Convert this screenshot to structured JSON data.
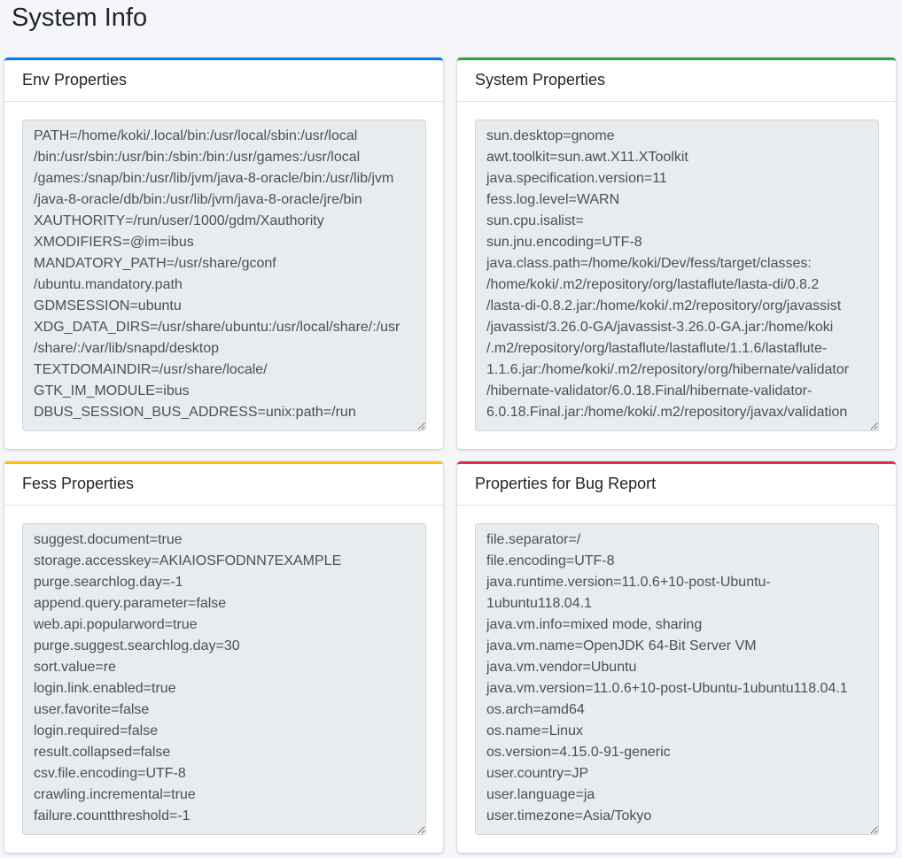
{
  "page": {
    "title": "System Info"
  },
  "colors": {
    "env": "#007bff",
    "system": "#28a745",
    "fess": "#ffc107",
    "bug": "#dc3545"
  },
  "panels": {
    "env": {
      "title": "Env Properties",
      "text": "PATH=/home/koki/.local/bin:/usr/local/sbin:/usr/local\n/bin:/usr/sbin:/usr/bin:/sbin:/bin:/usr/games:/usr/local\n/games:/snap/bin:/usr/lib/jvm/java-8-oracle/bin:/usr/lib/jvm\n/java-8-oracle/db/bin:/usr/lib/jvm/java-8-oracle/jre/bin\nXAUTHORITY=/run/user/1000/gdm/Xauthority\nXMODIFIERS=@im=ibus\nMANDATORY_PATH=/usr/share/gconf\n/ubuntu.mandatory.path\nGDMSESSION=ubuntu\nXDG_DATA_DIRS=/usr/share/ubuntu:/usr/local/share/:/usr\n/share/:/var/lib/snapd/desktop\nTEXTDOMAINDIR=/usr/share/locale/\nGTK_IM_MODULE=ibus\nDBUS_SESSION_BUS_ADDRESS=unix:path=/run"
    },
    "system": {
      "title": "System Properties",
      "text": "sun.desktop=gnome\nawt.toolkit=sun.awt.X11.XToolkit\njava.specification.version=11\nfess.log.level=WARN\nsun.cpu.isalist=\nsun.jnu.encoding=UTF-8\njava.class.path=/home/koki/Dev/fess/target/classes:\n/home/koki/.m2/repository/org/lastaflute/lasta-di/0.8.2\n/lasta-di-0.8.2.jar:/home/koki/.m2/repository/org/javassist\n/javassist/3.26.0-GA/javassist-3.26.0-GA.jar:/home/koki\n/.m2/repository/org/lastaflute/lastaflute/1.1.6/lastaflute-\n1.1.6.jar:/home/koki/.m2/repository/org/hibernate/validator\n/hibernate-validator/6.0.18.Final/hibernate-validator-\n6.0.18.Final.jar:/home/koki/.m2/repository/javax/validation"
    },
    "fess": {
      "title": "Fess Properties",
      "text": "suggest.document=true\nstorage.accesskey=AKIAIOSFODNN7EXAMPLE\npurge.searchlog.day=-1\nappend.query.parameter=false\nweb.api.popularword=true\npurge.suggest.searchlog.day=30\nsort.value=re\nlogin.link.enabled=true\nuser.favorite=false\nlogin.required=false\nresult.collapsed=false\ncsv.file.encoding=UTF-8\ncrawling.incremental=true\nfailure.countthreshold=-1"
    },
    "bug": {
      "title": "Properties for Bug Report",
      "text": "file.separator=/\nfile.encoding=UTF-8\njava.runtime.version=11.0.6+10-post-Ubuntu-\n1ubuntu118.04.1\njava.vm.info=mixed mode, sharing\njava.vm.name=OpenJDK 64-Bit Server VM\njava.vm.vendor=Ubuntu\njava.vm.version=11.0.6+10-post-Ubuntu-1ubuntu118.04.1\nos.arch=amd64\nos.name=Linux\nos.version=4.15.0-91-generic\nuser.country=JP\nuser.language=ja\nuser.timezone=Asia/Tokyo"
    }
  }
}
